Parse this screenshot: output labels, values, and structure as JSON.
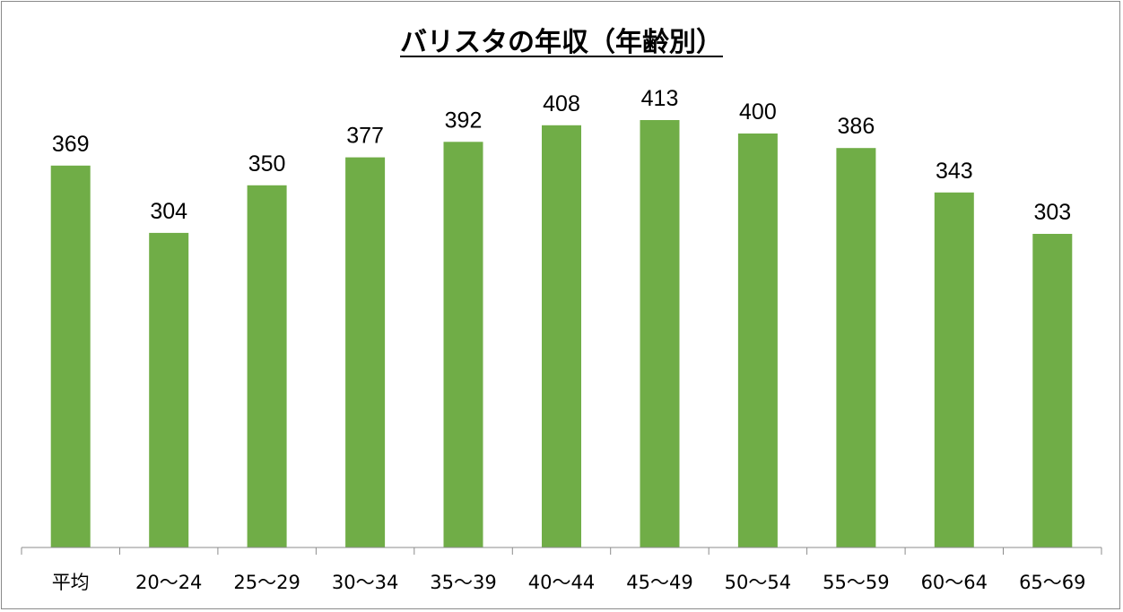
{
  "chart_data": {
    "type": "bar",
    "title": "バリスタの年収（年齢別）",
    "xlabel": "",
    "ylabel": "",
    "categories": [
      "平均",
      "20〜24",
      "25〜29",
      "30〜34",
      "35〜39",
      "40〜44",
      "45〜49",
      "50〜54",
      "55〜59",
      "60〜64",
      "65〜69"
    ],
    "values": [
      369,
      304,
      350,
      377,
      392,
      408,
      413,
      400,
      386,
      343,
      303
    ],
    "ylim": [
      0,
      450
    ],
    "bar_color": "#70ad47",
    "axis_color": "#8c8c8c",
    "grid": false,
    "legend": "none",
    "data_labels": true
  }
}
